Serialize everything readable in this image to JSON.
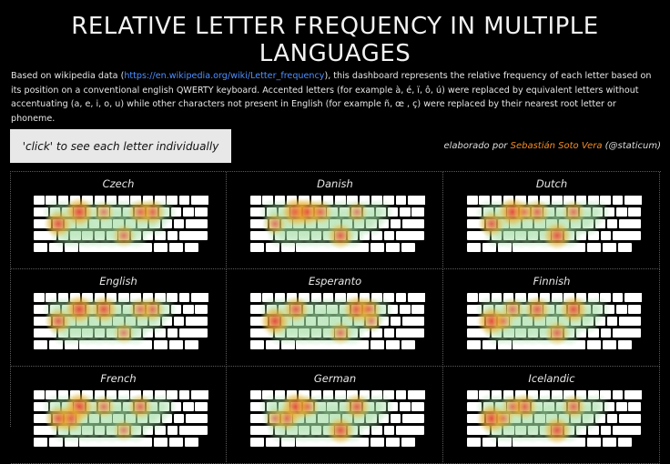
{
  "header": {
    "title": "RELATIVE LETTER FREQUENCY IN MULTIPLE LANGUAGES",
    "desc_before": "Based on wikipedia data (",
    "desc_link": "https://en.wikipedia.org/wiki/Letter_frequency",
    "desc_after": "), this dashboard represents the relative frequency of each letter based on its position on a conventional  english QWERTY keyboard. Accented letters (for example à, é, ï, ô, ú) were replaced by equivalent letters without accentuating (a, e, i, o, u) while other characters not present in English (for example ñ, œ , ç) were replaced by their nearest root letter or phoneme."
  },
  "button": {
    "label": "'click' to see each letter individually"
  },
  "credit": {
    "prefix": "elaborado por ",
    "author": "Sebastián Soto Vera",
    "handle": " (@staticum)"
  },
  "colors": {
    "background": "#000000",
    "author": "#f28c28",
    "link": "#4f90ff",
    "hot": "#e8342a",
    "warm": "#f5a623",
    "cool": "#9fdca0"
  },
  "languages": [
    {
      "name": "Czech",
      "hot": [
        "e",
        "a",
        "o",
        "i",
        "n",
        "t"
      ]
    },
    {
      "name": "Danish",
      "hot": [
        "e",
        "r",
        "n",
        "t",
        "a",
        "i"
      ]
    },
    {
      "name": "Dutch",
      "hot": [
        "e",
        "n",
        "a",
        "t",
        "i",
        "r"
      ]
    },
    {
      "name": "English",
      "hot": [
        "e",
        "t",
        "a",
        "o",
        "i",
        "n"
      ]
    },
    {
      "name": "Esperanto",
      "hot": [
        "a",
        "i",
        "e",
        "o",
        "n",
        "l"
      ]
    },
    {
      "name": "Finnish",
      "hot": [
        "a",
        "i",
        "t",
        "n",
        "e",
        "s"
      ]
    },
    {
      "name": "French",
      "hot": [
        "e",
        "s",
        "a",
        "i",
        "t",
        "n"
      ]
    },
    {
      "name": "German",
      "hot": [
        "e",
        "n",
        "i",
        "s",
        "r",
        "a"
      ]
    },
    {
      "name": "Icelandic",
      "hot": [
        "a",
        "n",
        "r",
        "i",
        "e",
        "s"
      ]
    }
  ]
}
